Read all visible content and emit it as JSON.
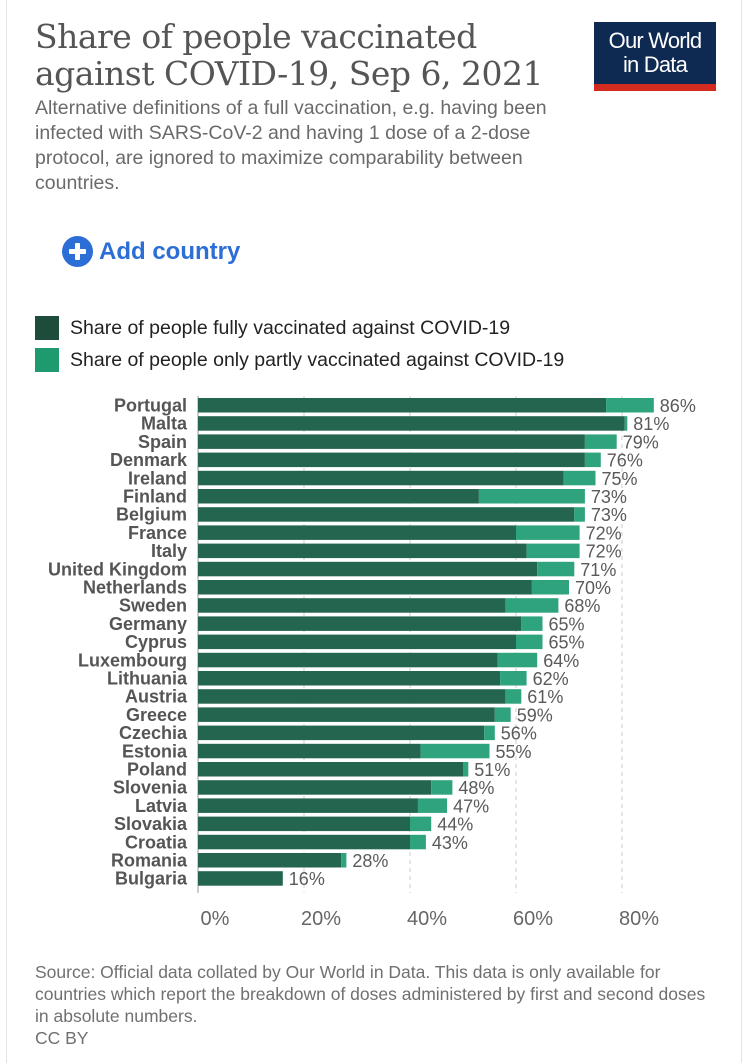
{
  "header": {
    "title_line1": "Share of people vaccinated",
    "title_line2": "against COVID-19, Sep 6, 2021",
    "subtitle": "Alternative definitions of a full vaccination, e.g. having been infected with SARS-CoV-2 and having 1 dose of a 2-dose protocol, are ignored to maximize comparability between countries.",
    "logo_line1": "Our World",
    "logo_line2": "in Data"
  },
  "controls": {
    "add_country_label": "Add country",
    "add_icon": "plus-circle-icon"
  },
  "colors": {
    "fully": "#24654f",
    "partly": "#2ea37e",
    "accent_blue": "#2c6ed6",
    "logo_bg": "#0f2a52",
    "logo_bar": "#d42b21"
  },
  "legend": [
    {
      "label": "Share of people fully vaccinated against COVID-19",
      "color": "#1d4d3a"
    },
    {
      "label": "Share of people only partly vaccinated against COVID-19",
      "color": "#1f9a6e"
    }
  ],
  "chart_data": {
    "type": "bar",
    "orientation": "horizontal",
    "stacked": true,
    "title": "Share of people vaccinated against COVID-19, Sep 6, 2021",
    "xlabel": "",
    "ylabel": "",
    "xlim": [
      0,
      90
    ],
    "xticks": [
      0,
      20,
      40,
      60,
      80
    ],
    "xtick_labels": [
      "0%",
      "20%",
      "40%",
      "60%",
      "80%"
    ],
    "grid": "vertical-dashed",
    "legend_position": "top-left",
    "categories": [
      "Portugal",
      "Malta",
      "Spain",
      "Denmark",
      "Ireland",
      "Finland",
      "Belgium",
      "France",
      "Italy",
      "United Kingdom",
      "Netherlands",
      "Sweden",
      "Germany",
      "Cyprus",
      "Luxembourg",
      "Lithuania",
      "Austria",
      "Greece",
      "Czechia",
      "Estonia",
      "Poland",
      "Slovenia",
      "Latvia",
      "Slovakia",
      "Croatia",
      "Romania",
      "Bulgaria"
    ],
    "series": [
      {
        "name": "Share of people fully vaccinated against COVID-19",
        "values": [
          77,
          80.5,
          73,
          73,
          69,
          53,
          71,
          60,
          62,
          64,
          63,
          58,
          61,
          60,
          56.5,
          57,
          58,
          56,
          54,
          42,
          50,
          44,
          41.5,
          40,
          40,
          27,
          16
        ]
      },
      {
        "name": "Share of people only partly vaccinated against COVID-19",
        "values": [
          9,
          0.5,
          6,
          3,
          6,
          20,
          2,
          12,
          10,
          7,
          7,
          10,
          4,
          5,
          7.5,
          5,
          3,
          3,
          2,
          13,
          1,
          4,
          5.5,
          4,
          3,
          1,
          0
        ]
      }
    ],
    "totals": [
      86,
      81,
      79,
      76,
      75,
      73,
      73,
      72,
      72,
      71,
      70,
      68,
      65,
      65,
      64,
      62,
      61,
      59,
      56,
      55,
      51,
      48,
      47,
      44,
      43,
      28,
      16
    ],
    "total_labels": [
      "86%",
      "81%",
      "79%",
      "76%",
      "75%",
      "73%",
      "73%",
      "72%",
      "72%",
      "71%",
      "70%",
      "68%",
      "65%",
      "65%",
      "64%",
      "62%",
      "61%",
      "59%",
      "56%",
      "55%",
      "51%",
      "48%",
      "47%",
      "44%",
      "43%",
      "28%",
      "16%"
    ]
  },
  "footer": {
    "source": "Source: Official data collated by Our World in Data. This data is only available for countries which report the breakdown of doses administered by first and second doses in absolute numbers.",
    "license": "CC BY"
  }
}
